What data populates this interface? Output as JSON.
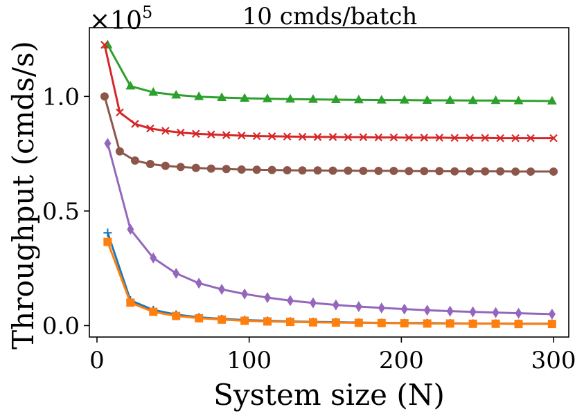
{
  "chart_data": {
    "type": "line",
    "title": "10 cmds/batch",
    "xlabel": "System size (N)",
    "ylabel": "Throughput (cmds/s)",
    "y_multiplier_label": "×10",
    "y_multiplier_exponent": "5",
    "xlim": [
      -5,
      310
    ],
    "ylim": [
      -0.05,
      1.3
    ],
    "x_ticks": [
      0,
      100,
      200,
      300
    ],
    "x_tick_labels": [
      "0",
      "100",
      "200",
      "300"
    ],
    "y_ticks": [
      0.0,
      0.5,
      1.0
    ],
    "y_tick_labels": [
      "0.0",
      "0.5",
      "1.0"
    ],
    "grid": false,
    "legend": "none",
    "series": [
      {
        "name": "green-triangle-series",
        "color": "#2ca02c",
        "marker": "triangle",
        "x": [
          7,
          22,
          37,
          52,
          67,
          82,
          97,
          112,
          127,
          142,
          157,
          172,
          187,
          202,
          217,
          232,
          247,
          262,
          277,
          299
        ],
        "y": [
          1.225,
          1.045,
          1.018,
          1.006,
          0.999,
          0.995,
          0.992,
          0.99,
          0.988,
          0.987,
          0.986,
          0.985,
          0.984,
          0.984,
          0.983,
          0.983,
          0.982,
          0.982,
          0.981,
          0.98
        ]
      },
      {
        "name": "red-x-series",
        "color": "#d62728",
        "marker": "x",
        "x": [
          5,
          15,
          25,
          35,
          45,
          55,
          65,
          75,
          85,
          95,
          105,
          115,
          125,
          135,
          145,
          155,
          165,
          175,
          185,
          195,
          205,
          215,
          225,
          235,
          245,
          255,
          265,
          275,
          285,
          300
        ],
        "y": [
          1.225,
          0.93,
          0.88,
          0.86,
          0.85,
          0.842,
          0.837,
          0.834,
          0.831,
          0.829,
          0.827,
          0.826,
          0.825,
          0.824,
          0.823,
          0.823,
          0.822,
          0.822,
          0.821,
          0.821,
          0.82,
          0.82,
          0.82,
          0.819,
          0.819,
          0.819,
          0.818,
          0.818,
          0.818,
          0.818
        ]
      },
      {
        "name": "brown-circle-series",
        "color": "#8c564b",
        "marker": "circle",
        "x": [
          5,
          15,
          25,
          35,
          45,
          55,
          65,
          75,
          85,
          95,
          105,
          115,
          125,
          135,
          145,
          155,
          165,
          175,
          185,
          195,
          205,
          215,
          225,
          235,
          245,
          255,
          265,
          275,
          285,
          300
        ],
        "y": [
          1.0,
          0.76,
          0.72,
          0.705,
          0.697,
          0.692,
          0.688,
          0.685,
          0.683,
          0.681,
          0.68,
          0.679,
          0.678,
          0.677,
          0.677,
          0.676,
          0.676,
          0.675,
          0.675,
          0.675,
          0.674,
          0.674,
          0.674,
          0.673,
          0.673,
          0.673,
          0.673,
          0.672,
          0.672,
          0.672
        ]
      },
      {
        "name": "purple-diamond-series",
        "color": "#9467bd",
        "marker": "diamond",
        "x": [
          7,
          22,
          37,
          52,
          67,
          82,
          97,
          112,
          127,
          142,
          157,
          172,
          187,
          202,
          217,
          232,
          247,
          262,
          277,
          299
        ],
        "y": [
          0.795,
          0.42,
          0.295,
          0.228,
          0.185,
          0.158,
          0.138,
          0.122,
          0.109,
          0.099,
          0.09,
          0.083,
          0.077,
          0.072,
          0.067,
          0.063,
          0.06,
          0.057,
          0.054,
          0.05
        ]
      },
      {
        "name": "blue-plus-series",
        "color": "#1f77b4",
        "marker": "plus",
        "x": [
          7,
          22,
          37,
          52,
          67,
          82,
          97,
          112,
          127,
          142,
          157,
          172,
          187,
          202,
          217,
          232,
          247,
          262,
          277,
          299
        ],
        "y": [
          0.405,
          0.11,
          0.068,
          0.048,
          0.036,
          0.029,
          0.024,
          0.021,
          0.018,
          0.016,
          0.015,
          0.013,
          0.012,
          0.011,
          0.011,
          0.01,
          0.009,
          0.009,
          0.008,
          0.008
        ]
      },
      {
        "name": "orange-square-series",
        "color": "#ff7f0e",
        "marker": "square",
        "x": [
          7,
          22,
          37,
          52,
          67,
          82,
          97,
          112,
          127,
          142,
          157,
          172,
          187,
          202,
          217,
          232,
          247,
          262,
          277,
          299
        ],
        "y": [
          0.365,
          0.1,
          0.06,
          0.042,
          0.032,
          0.026,
          0.021,
          0.018,
          0.016,
          0.014,
          0.013,
          0.012,
          0.011,
          0.01,
          0.009,
          0.009,
          0.008,
          0.008,
          0.007,
          0.007
        ]
      }
    ]
  }
}
